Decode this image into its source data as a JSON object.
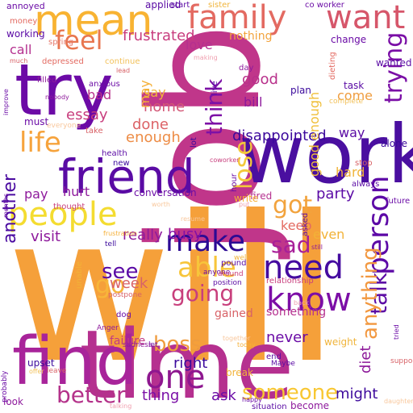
{
  "words": [
    {
      "text": "will",
      "color": "#f5a03a"
    },
    {
      "text": "job",
      "color": "#c0368a"
    },
    {
      "text": "time",
      "color": "#b5308f"
    },
    {
      "text": "work",
      "color": "#4a0fa0"
    },
    {
      "text": "find",
      "color": "#a8249a"
    },
    {
      "text": "try",
      "color": "#6c0aa6"
    },
    {
      "text": "friend",
      "color": "#5a0ba4"
    },
    {
      "text": "mean",
      "color": "#f8b332"
    },
    {
      "text": "family",
      "color": "#e36a61"
    },
    {
      "text": "people",
      "color": "#f4dc30"
    },
    {
      "text": "know",
      "color": "#7c0ea6"
    },
    {
      "text": "need",
      "color": "#450ba0"
    },
    {
      "text": "make",
      "color": "#2c0a94"
    },
    {
      "text": "person",
      "color": "#5c08a6"
    },
    {
      "text": "life",
      "color": "#f6a33c"
    },
    {
      "text": "feel",
      "color": "#e8764f"
    },
    {
      "text": "want",
      "color": "#d6566a"
    },
    {
      "text": "think",
      "color": "#7c10a6"
    },
    {
      "text": "lose",
      "color": "#f3c83a"
    },
    {
      "text": "got",
      "color": "#f2a33d"
    },
    {
      "text": "sad",
      "color": "#a71f99"
    },
    {
      "text": "one",
      "color": "#8e178f"
    },
    {
      "text": "trying",
      "color": "#7a0ea6"
    },
    {
      "text": "able",
      "color": "#f7c53a"
    },
    {
      "text": "going",
      "color": "#c83f7c"
    },
    {
      "text": "someone",
      "color": "#f8c732"
    },
    {
      "text": "talk",
      "color": "#5c0ca5"
    },
    {
      "text": "boss",
      "color": "#ef9c3e"
    },
    {
      "text": "better",
      "color": "#b4328a"
    },
    {
      "text": "anything",
      "color": "#f29840"
    },
    {
      "text": "another",
      "color": "#4a0aa0"
    },
    {
      "text": "disappointed",
      "color": "#3c099c"
    },
    {
      "text": "frustrated",
      "color": "#c83d7e"
    },
    {
      "text": "see",
      "color": "#5a0aa5"
    },
    {
      "text": "go",
      "color": "#f7b63a"
    },
    {
      "text": "diet",
      "color": "#8c1799"
    },
    {
      "text": "right",
      "color": "#3b099c"
    },
    {
      "text": "might",
      "color": "#3d099c"
    },
    {
      "text": "essay",
      "color": "#c83e7d"
    },
    {
      "text": "enough",
      "color": "#ed8c45"
    },
    {
      "text": "party",
      "color": "#5b0ba5"
    },
    {
      "text": "busy",
      "color": "#830fa6"
    },
    {
      "text": "good",
      "color": "#b8308b"
    },
    {
      "text": "never",
      "color": "#6b0ca6"
    },
    {
      "text": "good enough",
      "color": "#f0be38"
    },
    {
      "text": "done",
      "color": "#dc6266"
    },
    {
      "text": "home",
      "color": "#d35776"
    },
    {
      "text": "thing",
      "color": "#7a0ea6"
    },
    {
      "text": "week",
      "color": "#d86267"
    },
    {
      "text": "really",
      "color": "#8e1a9c"
    },
    {
      "text": "visit",
      "color": "#8e1a9c"
    },
    {
      "text": "even",
      "color": "#f2b237"
    },
    {
      "text": "hard",
      "color": "#f0b43b"
    },
    {
      "text": "keep",
      "color": "#e36a61"
    },
    {
      "text": "ask",
      "color": "#6b0ca6"
    },
    {
      "text": "come",
      "color": "#ef9c3e"
    },
    {
      "text": "may",
      "color": "#f5b038"
    },
    {
      "text": "way",
      "color": "#5a0ba4"
    },
    {
      "text": "pay",
      "color": "#8e1a9c"
    },
    {
      "text": "hurt",
      "color": "#8e1a9c"
    },
    {
      "text": "bad",
      "color": "#b8308b"
    },
    {
      "text": "say",
      "color": "#f0b43b"
    },
    {
      "text": "call",
      "color": "#b5308f"
    },
    {
      "text": "love",
      "color": "#b5308f"
    },
    {
      "text": "nothing",
      "color": "#f2a33d"
    },
    {
      "text": "bill",
      "color": "#8e1a9c"
    },
    {
      "text": "must",
      "color": "#6b0ca6"
    },
    {
      "text": "working",
      "color": "#5a0aa5"
    },
    {
      "text": "something",
      "color": "#b5308f"
    },
    {
      "text": "failure",
      "color": "#c13a84"
    },
    {
      "text": "gained",
      "color": "#d86267"
    },
    {
      "text": "upset",
      "color": "#3b099c"
    },
    {
      "text": "look",
      "color": "#8e1a9c"
    },
    {
      "text": "conversation",
      "color": "#6b0ca6"
    },
    {
      "text": "fired",
      "color": "#b5308f"
    },
    {
      "text": "relationship",
      "color": "#c83e7d"
    },
    {
      "text": "situation",
      "color": "#5a0ba4"
    },
    {
      "text": "become",
      "color": "#8e1a9c"
    },
    {
      "text": "weight",
      "color": "#f0b43b"
    },
    {
      "text": "break",
      "color": "#f2b237"
    },
    {
      "text": "task",
      "color": "#5a0ba4"
    },
    {
      "text": "plan",
      "color": "#3b099c"
    },
    {
      "text": "day",
      "color": "#8e1a9c"
    },
    {
      "text": "wanted",
      "color": "#5a0ba4"
    },
    {
      "text": "change",
      "color": "#6b0ca6"
    },
    {
      "text": "applied",
      "color": "#5a0ba4"
    },
    {
      "text": "sister",
      "color": "#f0b43b"
    },
    {
      "text": "start",
      "color": "#5a0ba4"
    },
    {
      "text": "co worker",
      "color": "#6b0ca6"
    },
    {
      "text": "annoyed",
      "color": "#6b0ca6"
    },
    {
      "text": "money",
      "color": "#e36a61"
    },
    {
      "text": "spring",
      "color": "#e6786a"
    },
    {
      "text": "depressed",
      "color": "#e36a61"
    },
    {
      "text": "continue",
      "color": "#f2c15a"
    },
    {
      "text": "lead",
      "color": "#d86267"
    },
    {
      "text": "making",
      "color": "#f0a0b0"
    },
    {
      "text": "much",
      "color": "#d86267"
    },
    {
      "text": "filled",
      "color": "#8e1a9c"
    },
    {
      "text": "anxious",
      "color": "#6b0ca6"
    },
    {
      "text": "nobody",
      "color": "#8e1a9c"
    },
    {
      "text": "improve",
      "color": "#6b0ca6"
    },
    {
      "text": "everyone",
      "color": "#f8c79c"
    },
    {
      "text": "take",
      "color": "#d86267"
    },
    {
      "text": "health",
      "color": "#5a0ba4"
    },
    {
      "text": "new",
      "color": "#3b099c"
    },
    {
      "text": "coworker",
      "color": "#c83e7d"
    },
    {
      "text": "lot",
      "color": "#3b099c"
    },
    {
      "text": "live",
      "color": "#5a0ba4"
    },
    {
      "text": "dieting",
      "color": "#e36a61"
    },
    {
      "text": "complete",
      "color": "#f2c15a"
    },
    {
      "text": "alone",
      "color": "#3b099c"
    },
    {
      "text": "stop",
      "color": "#d86267"
    },
    {
      "text": "always",
      "color": "#5a0ba4"
    },
    {
      "text": "future",
      "color": "#6b0ca6"
    },
    {
      "text": "hour",
      "color": "#6b0ca6"
    },
    {
      "text": "write",
      "color": "#f5b038"
    },
    {
      "text": "put",
      "color": "#f0a0b0"
    },
    {
      "text": "worth",
      "color": "#f8c79c"
    },
    {
      "text": "thought",
      "color": "#c83e7d"
    },
    {
      "text": "months",
      "color": "#6b0ca6"
    },
    {
      "text": "frustration",
      "color": "#f5b038"
    },
    {
      "text": "tell",
      "color": "#3b099c"
    },
    {
      "text": "resume",
      "color": "#f8c79c"
    },
    {
      "text": "asked",
      "color": "#5a0ba4"
    },
    {
      "text": "still",
      "color": "#8e1a9c"
    },
    {
      "text": "unable",
      "color": "#f2b237"
    },
    {
      "text": "postpone",
      "color": "#d86267"
    },
    {
      "text": "dog",
      "color": "#6b0ca6"
    },
    {
      "text": "anyone",
      "color": "#6b0ca6"
    },
    {
      "text": "well",
      "color": "#f0b43b"
    },
    {
      "text": "pound",
      "color": "#5a0ba4"
    },
    {
      "text": "around",
      "color": "#c83e7d"
    },
    {
      "text": "position",
      "color": "#5a0ba4"
    },
    {
      "text": "Anger",
      "color": "#8e1a9c"
    },
    {
      "text": "back",
      "color": "#f0a0b0"
    },
    {
      "text": "together",
      "color": "#f8c79c"
    },
    {
      "text": "today",
      "color": "#f5b038"
    },
    {
      "text": "let",
      "color": "#6b0ca6"
    },
    {
      "text": "sadness",
      "color": "#8e1a9c"
    },
    {
      "text": "leave",
      "color": "#d86267"
    },
    {
      "text": "probably",
      "color": "#6b0ca6"
    },
    {
      "text": "offer",
      "color": "#f2c15a"
    },
    {
      "text": "Maybe",
      "color": "#5a0ba4"
    },
    {
      "text": "end",
      "color": "#5a0ba4"
    },
    {
      "text": "happy",
      "color": "#6b0ca6"
    },
    {
      "text": "talking",
      "color": "#f0a0b0"
    },
    {
      "text": "support",
      "color": "#d86267"
    },
    {
      "text": "tried",
      "color": "#6b0ca6"
    },
    {
      "text": "daughter",
      "color": "#f8c79c"
    }
  ]
}
